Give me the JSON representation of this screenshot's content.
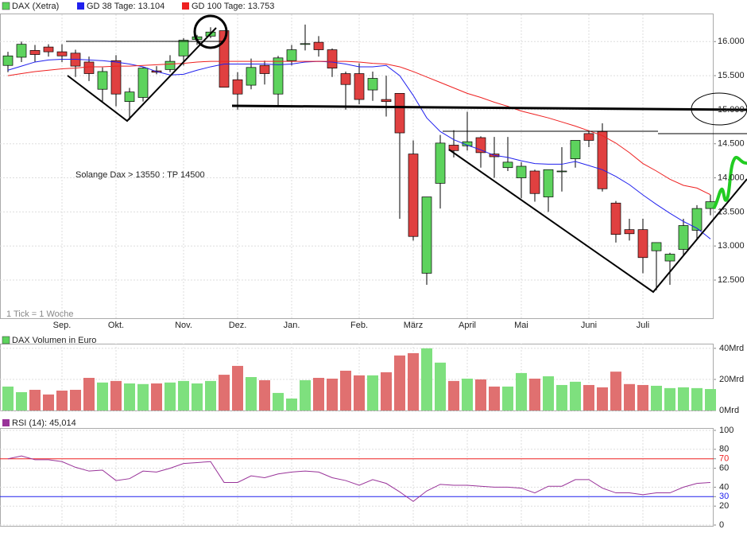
{
  "chart_data": [
    {
      "type": "candlestick",
      "categories": [
        null,
        null,
        null,
        null,
        "Sep.",
        null,
        null,
        null,
        "Okt.",
        null,
        null,
        null,
        null,
        "Nov.",
        null,
        null,
        null,
        "Dez.",
        null,
        null,
        null,
        "Jan.",
        null,
        null,
        null,
        null,
        "Feb.",
        null,
        null,
        null,
        "März",
        null,
        null,
        null,
        "April",
        null,
        null,
        null,
        "Mai",
        null,
        null,
        null,
        null,
        "Juni",
        null,
        null,
        null,
        "Juli",
        null,
        null,
        null,
        null,
        null
      ],
      "series": [
        {
          "name": "DAX (Xetra)",
          "color": "#5dd35d",
          "up_color": "#5dd35d",
          "down_color": "#e04040",
          "open": [
            15650,
            15770,
            15870,
            15920,
            15850,
            15830,
            15700,
            15300,
            15720,
            15120,
            15180,
            15570,
            15590,
            15790,
            16030,
            16080,
            16160,
            15440,
            15360,
            15650,
            15230,
            15720,
            15960,
            15990,
            15880,
            15530,
            15530,
            15290,
            15150,
            15240,
            14350,
            12600,
            13920,
            14480,
            14470,
            14590,
            14350,
            14150,
            14000,
            14100,
            13720,
            14090,
            14280,
            14650,
            14680,
            13630,
            13240,
            13240,
            12930,
            12780,
            12950,
            13230,
            13550
          ],
          "high": [
            15850,
            16000,
            15950,
            15960,
            15960,
            15880,
            15780,
            15620,
            15800,
            15320,
            15620,
            15640,
            15800,
            16050,
            16100,
            16210,
            16160,
            15550,
            15750,
            15720,
            15790,
            15950,
            16250,
            16080,
            15900,
            15560,
            15680,
            15560,
            15500,
            15240,
            14550,
            13720,
            14630,
            14700,
            14970,
            14610,
            14600,
            14600,
            14230,
            14120,
            14120,
            14450,
            14550,
            14690,
            14800,
            13660,
            13400,
            13400,
            13050,
            12900,
            13400,
            13600,
            13750
          ],
          "low": [
            15550,
            15700,
            15700,
            15780,
            15700,
            15480,
            15420,
            15100,
            15050,
            14850,
            15120,
            15520,
            15550,
            15650,
            15950,
            16050,
            15330,
            15000,
            15300,
            15370,
            15050,
            15650,
            15870,
            15780,
            15480,
            15000,
            15080,
            15130,
            14900,
            13400,
            13080,
            12430,
            13550,
            14300,
            14400,
            14150,
            14000,
            14100,
            13700,
            13650,
            13500,
            13800,
            14150,
            14450,
            13800,
            13050,
            13080,
            12600,
            12350,
            12430,
            12850,
            13100,
            13450
          ],
          "close": [
            15790,
            15960,
            15810,
            15850,
            15790,
            15640,
            15530,
            15560,
            15230,
            15260,
            15610,
            15550,
            15710,
            16020,
            16070,
            16140,
            15330,
            15230,
            15620,
            15530,
            15760,
            15880,
            15970,
            15880,
            15610,
            15370,
            15150,
            15460,
            15120,
            14660,
            13140,
            13720,
            14510,
            14400,
            14530,
            14370,
            14310,
            14230,
            14170,
            13770,
            14120,
            14100,
            14550,
            14550,
            13840,
            13170,
            13180,
            12830,
            13050,
            12880,
            13300,
            13550,
            13650
          ]
        },
        {
          "name": "GD 38 Tage: 13.104",
          "color": "#2020ee",
          "values": [
            15580,
            15640,
            15700,
            15730,
            15740,
            15740,
            15730,
            15720,
            15700,
            15670,
            15630,
            15560,
            15510,
            15520,
            15580,
            15630,
            15670,
            15670,
            15670,
            15670,
            15660,
            15670,
            15700,
            15710,
            15700,
            15670,
            15630,
            15630,
            15650,
            15500,
            15210,
            14880,
            14680,
            14560,
            14480,
            14410,
            14330,
            14300,
            14250,
            14210,
            14200,
            14200,
            14240,
            14180,
            14120,
            14020,
            13900,
            13750,
            13610,
            13480,
            13360,
            13260,
            13104
          ]
        },
        {
          "name": "GD 100 Tage: 13.753",
          "color": "#ee2020",
          "values": [
            15500,
            15530,
            15560,
            15580,
            15600,
            15610,
            15630,
            15630,
            15640,
            15640,
            15650,
            15660,
            15670,
            15680,
            15700,
            15710,
            15710,
            15710,
            15710,
            15710,
            15710,
            15710,
            15710,
            15710,
            15710,
            15710,
            15700,
            15680,
            15670,
            15630,
            15560,
            15480,
            15400,
            15320,
            15240,
            15180,
            15110,
            15050,
            14980,
            14930,
            14880,
            14820,
            14760,
            14690,
            14620,
            14510,
            14370,
            14210,
            14100,
            13980,
            13890,
            13850,
            13753
          ]
        }
      ],
      "ylim": [
        11940,
        16400
      ],
      "yticks": [
        {
          "value": 12500,
          "label": "12.500"
        },
        {
          "value": 13000,
          "label": "13.000"
        },
        {
          "value": 13500,
          "label": "13.500"
        },
        {
          "value": 14000,
          "label": "14.000"
        },
        {
          "value": 14500,
          "label": "14.500"
        },
        {
          "value": 15000,
          "label": "15.000"
        },
        {
          "value": 15500,
          "label": "15.500"
        },
        {
          "value": 16000,
          "label": "16.000"
        }
      ],
      "grid": true,
      "annotations": [
        "Solange Dax > 13550 : TP 14500",
        "1 Tick = 1 Woche"
      ]
    },
    {
      "type": "bar",
      "series": [
        {
          "name": "DAX Volumen in Euro",
          "color": "#5dd35d",
          "up_color": "#7ee07e",
          "down_color": "#e07070",
          "values": [
            15.4,
            11.8,
            13.3,
            10.3,
            12.8,
            13.3,
            21,
            18,
            19,
            17.4,
            17,
            17.4,
            18,
            19,
            17.4,
            19,
            23,
            28.7,
            21.5,
            19.5,
            11.3,
            7.7,
            19.5,
            21,
            20.5,
            25.6,
            22.6,
            22.6,
            24.6,
            35.4,
            36.9,
            40,
            30.8,
            19,
            20.5,
            20,
            15.4,
            15.4,
            24.1,
            20.5,
            22,
            16.4,
            18.5,
            16.4,
            14.9,
            25,
            17,
            16.4,
            15.9,
            14.4,
            14.9,
            14.4,
            13.8
          ]
        }
      ],
      "ylim": [
        0,
        43
      ],
      "yticks": [
        {
          "value": 0,
          "label": "0Mrd"
        },
        {
          "value": 20,
          "label": "20Mrd"
        },
        {
          "value": 40,
          "label": "40Mrd"
        }
      ],
      "grid": true
    },
    {
      "type": "line",
      "series": [
        {
          "name": "RSI (14): 45,014",
          "color": "#993399",
          "values": [
            70,
            73,
            69,
            69,
            67,
            61,
            57,
            58,
            47,
            49,
            57,
            56,
            60,
            65,
            66,
            67,
            45,
            45,
            52,
            50,
            54,
            56,
            57,
            56,
            50,
            47,
            42,
            48,
            44,
            35,
            25,
            36,
            43,
            42,
            42,
            41,
            40,
            40,
            39,
            34,
            41,
            41,
            48,
            48,
            39,
            34,
            34,
            32,
            34,
            34,
            40,
            44,
            45
          ]
        }
      ],
      "ylim": [
        0,
        100
      ],
      "yticks": [
        0,
        20,
        30,
        40,
        60,
        70,
        80,
        100
      ],
      "ref_lines": [
        {
          "value": 70,
          "color": "#ee2020"
        },
        {
          "value": 30,
          "color": "#2020ee"
        }
      ],
      "grid": true
    }
  ]
}
